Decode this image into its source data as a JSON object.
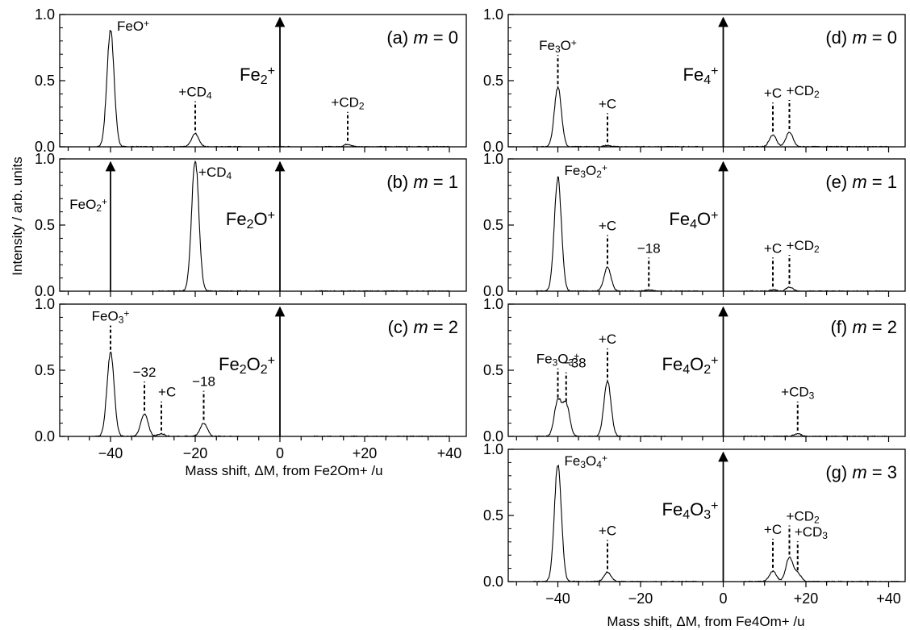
{
  "y_axis_label": "Intensity / arb. units",
  "x_axis_labels": {
    "left": "Mass shift, ΔM, from Fe2Om+ /u",
    "right": "Mass shift, ΔM, from Fe4Om+ /u"
  },
  "chart_data": [
    {
      "type": "line",
      "panel": "(a) m = 0",
      "parent_ion": "Fe2+",
      "xlim": [
        -52,
        44
      ],
      "ylim": [
        0,
        1.0
      ],
      "yticks": [
        "0.0",
        "0.5",
        "1.0"
      ],
      "peaks": [
        {
          "x": -40,
          "y": 0.88
        },
        {
          "x": -20,
          "y": 0.1
        },
        {
          "x": 16,
          "y": 0.02
        }
      ],
      "segments": [
        [
          -44,
          -9
        ],
        [
          -3,
          3
        ],
        [
          8,
          40
        ]
      ],
      "annotations": [
        {
          "label": "FeO+",
          "x": -40,
          "peak": 0.88,
          "line": false
        },
        {
          "label": "+CD4",
          "x": -20,
          "peak": 0.1,
          "line": true
        },
        {
          "label": "+CD2",
          "x": 16,
          "peak": 0.02,
          "line": true
        }
      ]
    },
    {
      "type": "line",
      "panel": "(b) m = 1",
      "parent_ion": "Fe2O+",
      "xlim": [
        -52,
        44
      ],
      "ylim": [
        0,
        1.0
      ],
      "yticks": [
        "0.0",
        "0.5",
        "1.0"
      ],
      "peaks": [
        {
          "x": -20,
          "y": 1.0
        }
      ],
      "segments": [
        [
          -32,
          -5
        ],
        [
          8,
          40
        ]
      ],
      "arrows": [
        {
          "label": "FeO2+",
          "x": -40
        }
      ],
      "annotations": [
        {
          "label": "+CD4",
          "x": -20,
          "peak": 1.0,
          "line": false
        }
      ]
    },
    {
      "type": "line",
      "panel": "(c) m = 2",
      "parent_ion": "Fe2O2+",
      "xlim": [
        -52,
        44
      ],
      "ylim": [
        0,
        1.0
      ],
      "yticks": [
        "0.0",
        "0.5",
        "1.0"
      ],
      "peaks": [
        {
          "x": -40,
          "y": 0.63
        },
        {
          "x": -32,
          "y": 0.17
        },
        {
          "x": -28,
          "y": 0.02
        },
        {
          "x": -18,
          "y": 0.1
        }
      ],
      "segments": [
        [
          -44,
          -9
        ],
        [
          8,
          40
        ]
      ],
      "annotations": [
        {
          "label": "FeO3+",
          "x": -40,
          "peak": 0.63,
          "line": true
        },
        {
          "label": "−32",
          "x": -32,
          "peak": 0.17,
          "line": true
        },
        {
          "label": "+C",
          "x": -28,
          "peak": 0.02,
          "line": true
        },
        {
          "label": "−18",
          "x": -18,
          "peak": 0.1,
          "line": true
        }
      ]
    },
    {
      "type": "line",
      "panel": "(d) m = 0",
      "parent_ion": "Fe4+",
      "xlim": [
        -52,
        44
      ],
      "ylim": [
        0,
        1.0
      ],
      "yticks": [
        "0.0",
        "0.5",
        "1.0"
      ],
      "peaks": [
        {
          "x": -40,
          "y": 0.45
        },
        {
          "x": -28,
          "y": 0.01
        },
        {
          "x": 12,
          "y": 0.09
        },
        {
          "x": 16,
          "y": 0.11
        }
      ],
      "segments": [
        [
          -46,
          -6
        ],
        [
          5,
          40
        ]
      ],
      "annotations": [
        {
          "label": "Fe3O+",
          "x": -40,
          "peak": 0.45,
          "line": true
        },
        {
          "label": "+C",
          "x": -28,
          "peak": 0.01,
          "line": true
        },
        {
          "label": "+C",
          "x": 12,
          "peak": 0.09,
          "line": true
        },
        {
          "label": "+CD2",
          "x": 16,
          "peak": 0.11,
          "line": true
        }
      ]
    },
    {
      "type": "line",
      "panel": "(e) m = 1",
      "parent_ion": "Fe4O+",
      "xlim": [
        -52,
        44
      ],
      "ylim": [
        0,
        1.0
      ],
      "yticks": [
        "0.0",
        "0.5",
        "1.0"
      ],
      "peaks": [
        {
          "x": -40,
          "y": 0.86
        },
        {
          "x": -28,
          "y": 0.18
        },
        {
          "x": -18,
          "y": 0.01
        },
        {
          "x": 12,
          "y": 0.01
        },
        {
          "x": 16,
          "y": 0.03
        }
      ],
      "segments": [
        [
          -46,
          -6
        ],
        [
          5,
          40
        ]
      ],
      "annotations": [
        {
          "label": "Fe3O2+",
          "x": -40,
          "peak": 0.86,
          "line": false
        },
        {
          "label": "+C",
          "x": -28,
          "peak": 0.18,
          "line": true
        },
        {
          "label": "−18",
          "x": -18,
          "peak": 0.01,
          "line": true
        },
        {
          "label": "+C",
          "x": 12,
          "peak": 0.01,
          "line": true
        },
        {
          "label": "+CD2",
          "x": 16,
          "peak": 0.03,
          "line": true
        }
      ]
    },
    {
      "type": "line",
      "panel": "(f) m = 2",
      "parent_ion": "Fe4O2+",
      "xlim": [
        -52,
        44
      ],
      "ylim": [
        0,
        1.0
      ],
      "yticks": [
        "0.0",
        "0.5",
        "1.0"
      ],
      "peaks": [
        {
          "x": -40,
          "y": 0.27
        },
        {
          "x": -38,
          "y": 0.24
        },
        {
          "x": -28,
          "y": 0.42
        },
        {
          "x": 18,
          "y": 0.02
        }
      ],
      "segments": [
        [
          -46,
          -14
        ],
        [
          5,
          40
        ]
      ],
      "annotations": [
        {
          "label": "Fe3O3+",
          "x": -40,
          "peak": 0.27,
          "line": true
        },
        {
          "label": "−38",
          "x": -38,
          "peak": 0.24,
          "line": true
        },
        {
          "label": "+C",
          "x": -28,
          "peak": 0.42,
          "line": true
        },
        {
          "label": "+CD3",
          "x": 18,
          "peak": 0.02,
          "line": true
        }
      ]
    },
    {
      "type": "line",
      "panel": "(g) m = 3",
      "parent_ion": "Fe4O3+",
      "xlim": [
        -52,
        44
      ],
      "ylim": [
        0,
        1.0
      ],
      "yticks": [
        "0.0",
        "0.5",
        "1.0"
      ],
      "xticks": [
        "−40",
        "−20",
        "0",
        "+20",
        "+40"
      ],
      "peaks": [
        {
          "x": -40,
          "y": 0.88
        },
        {
          "x": -28,
          "y": 0.07
        },
        {
          "x": 12,
          "y": 0.08
        },
        {
          "x": 16,
          "y": 0.18
        },
        {
          "x": 18,
          "y": 0.06
        }
      ],
      "segments": [
        [
          -46,
          -6
        ],
        [
          5,
          43
        ]
      ],
      "annotations": [
        {
          "label": "Fe3O4+",
          "x": -40,
          "peak": 0.88,
          "line": false
        },
        {
          "label": "+C",
          "x": -28,
          "peak": 0.07,
          "line": true
        },
        {
          "label": "+C",
          "x": 12,
          "peak": 0.08,
          "line": true
        },
        {
          "label": "+CD2",
          "x": 16,
          "peak": 0.18,
          "line": true
        },
        {
          "label": "+CD3",
          "x": 18,
          "peak": 0.06,
          "line": true
        }
      ]
    }
  ],
  "left_xticks": [
    "−40",
    "−20",
    "0",
    "+20",
    "+40"
  ]
}
